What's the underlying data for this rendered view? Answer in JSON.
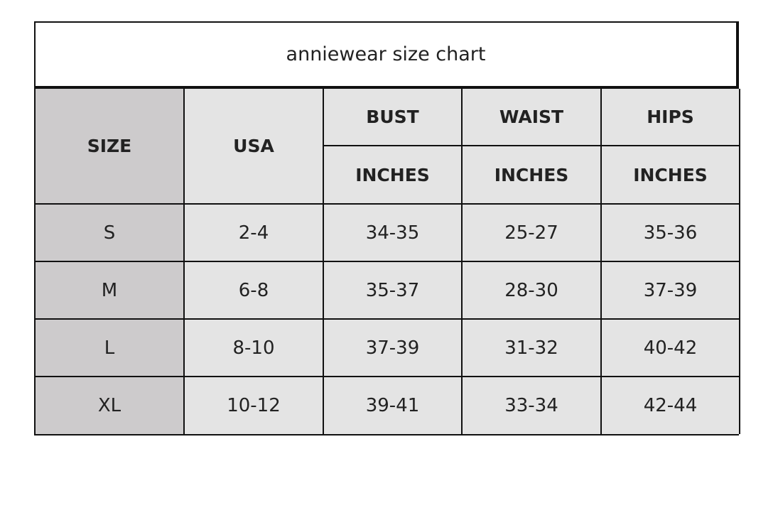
{
  "title": "anniewear size chart",
  "headers": {
    "size": "SIZE",
    "usa": "USA",
    "bust": "BUST",
    "waist": "WAIST",
    "hips": "HIPS",
    "unit": "INCHES"
  },
  "rows": [
    {
      "size": "S",
      "usa": "2-4",
      "bust": "34-35",
      "waist": "25-27",
      "hips": "35-36"
    },
    {
      "size": "M",
      "usa": "6-8",
      "bust": "35-37",
      "waist": "28-30",
      "hips": "37-39"
    },
    {
      "size": "L",
      "usa": "8-10",
      "bust": "37-39",
      "waist": "31-32",
      "hips": "40-42"
    },
    {
      "size": "XL",
      "usa": "10-12",
      "bust": "39-41",
      "waist": "33-34",
      "hips": "42-44"
    }
  ],
  "colors": {
    "size_column": "#cdcbcc",
    "cells": "#e4e4e4",
    "border": "#111111"
  }
}
